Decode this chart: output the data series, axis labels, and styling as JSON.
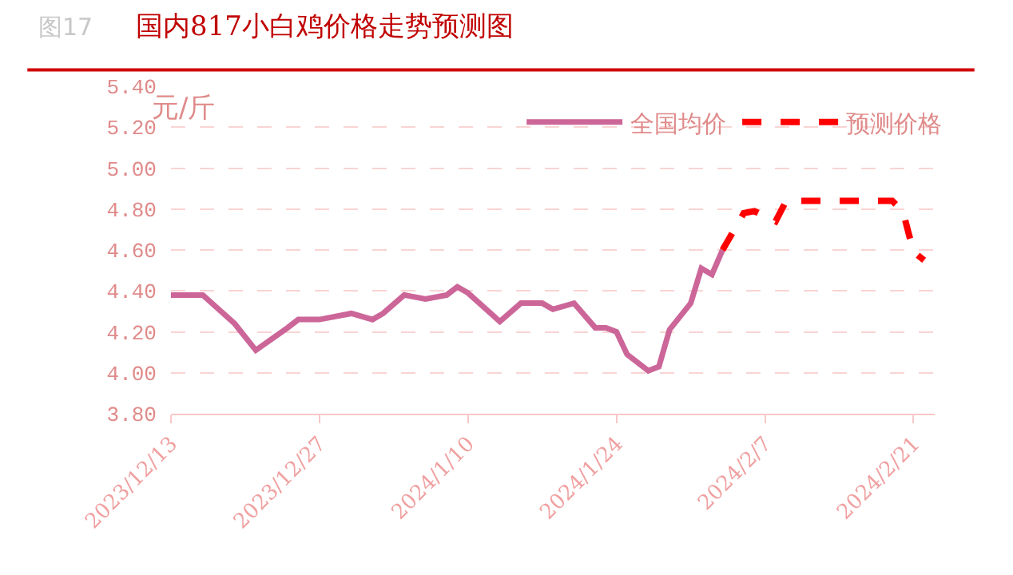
{
  "chart_data": {
    "type": "line",
    "title": "国内817小白鸡价格走势预测图",
    "ylabel": "元/斤",
    "annotations": [
      "图17"
    ],
    "series": [
      {
        "name": "全国均价",
        "color": "#cc6699",
        "x": [
          "2023-12-13",
          "2023-12-16",
          "2023-12-19",
          "2023-12-21",
          "2023-12-24",
          "2023-12-25",
          "2023-12-27",
          "2023-12-30",
          "2024-01-01",
          "2024-01-02",
          "2024-01-04",
          "2024-01-06",
          "2024-01-08",
          "2024-01-09",
          "2024-01-10",
          "2024-01-13",
          "2024-01-15",
          "2024-01-17",
          "2024-01-18",
          "2024-01-20",
          "2024-01-22",
          "2024-01-23",
          "2024-01-24",
          "2024-01-25",
          "2024-01-27",
          "2024-01-28",
          "2024-01-29",
          "2024-01-31",
          "2024-02-01",
          "2024-02-02",
          "2024-02-03"
        ],
        "values": [
          4.38,
          4.38,
          4.24,
          4.11,
          4.22,
          4.26,
          4.26,
          4.29,
          4.26,
          4.29,
          4.38,
          4.36,
          4.38,
          4.42,
          4.39,
          4.25,
          4.34,
          4.34,
          4.31,
          4.34,
          4.22,
          4.22,
          4.2,
          4.09,
          4.01,
          4.03,
          4.21,
          4.34,
          4.51,
          4.48,
          4.6
        ],
        "line_style": "solid"
      },
      {
        "name": "预测价格",
        "color": "#ff0000",
        "x": [
          "2024-02-03",
          "2024-02-05",
          "2024-02-06",
          "2024-02-08",
          "2024-02-09",
          "2024-02-19",
          "2024-02-20",
          "2024-02-21",
          "2024-02-22"
        ],
        "values": [
          4.6,
          4.78,
          4.79,
          4.74,
          4.84,
          4.84,
          4.79,
          4.59,
          4.55
        ],
        "line_style": "dashed"
      }
    ],
    "xlim": [
      "2023-12-13",
      "2024-02-23"
    ],
    "xticks": [
      {
        "value": "2023-12-13",
        "label": "2023/12/13"
      },
      {
        "value": "2023-12-27",
        "label": "2023/12/27"
      },
      {
        "value": "2024-01-10",
        "label": "2024/1/10"
      },
      {
        "value": "2024-01-24",
        "label": "2024/1/24"
      },
      {
        "value": "2024-02-07",
        "label": "2024/2/7"
      },
      {
        "value": "2024-02-21",
        "label": "2024/2/21"
      }
    ],
    "ylim": [
      3.8,
      5.4
    ],
    "yticks": [
      {
        "value": 3.8,
        "label": "3.80"
      },
      {
        "value": 4.0,
        "label": "4.00"
      },
      {
        "value": 4.2,
        "label": "4.20"
      },
      {
        "value": 4.4,
        "label": "4.40"
      },
      {
        "value": 4.6,
        "label": "4.60"
      },
      {
        "value": 4.8,
        "label": "4.80"
      },
      {
        "value": 5.0,
        "label": "5.00"
      },
      {
        "value": 5.2,
        "label": "5.20"
      },
      {
        "value": 5.4,
        "label": "5.40"
      }
    ],
    "grid": "y",
    "legend": "top right",
    "marker": "none"
  }
}
